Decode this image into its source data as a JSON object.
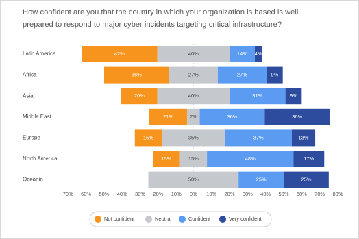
{
  "chart_data": {
    "type": "diverging-bar",
    "title": [
      "How confident are you that the country in which your organization is based is well",
      "prepared to respond to major cyber incidents targeting critical infrastructure?"
    ],
    "categories": [
      "Latin America",
      "Africa",
      "Asia",
      "Middle East",
      "Europe",
      "North America",
      "Oceania"
    ],
    "center_series": 1,
    "series": [
      {
        "name": "Not confident",
        "color": "#f7941d",
        "label_color": "#ffffff",
        "values": [
          42,
          36,
          20,
          21,
          15,
          15,
          null
        ],
        "value_labels": [
          "42%",
          "36%",
          "20%",
          "21%",
          "15%",
          "15%",
          null
        ]
      },
      {
        "name": "Neutral",
        "color": "#c5c9cd",
        "label_color": "#444444",
        "values": [
          40,
          27,
          40,
          7,
          35,
          15,
          50
        ],
        "value_labels": [
          "40%",
          "27%",
          "40%",
          "7%",
          "35%",
          "15%",
          "50%"
        ]
      },
      {
        "name": "Confident",
        "color": "#5b9cf2",
        "label_color": "#ffffff",
        "values": [
          14,
          27,
          31,
          36,
          37,
          48,
          25
        ],
        "value_labels": [
          "14%",
          "27%",
          "31%",
          "36%",
          "37%",
          "48%",
          "25%"
        ]
      },
      {
        "name": "Very confident",
        "color": "#2d4c9e",
        "label_color": "#ffffff",
        "values": [
          4,
          9,
          9,
          36,
          13,
          17,
          25
        ],
        "value_labels": [
          "4%",
          "9%",
          "9%",
          "36%",
          "13%",
          "17%",
          "25%"
        ]
      }
    ],
    "xlim": [
      -70,
      80
    ],
    "xticks": [
      {
        "value": -70,
        "label": "-70%"
      },
      {
        "value": -60,
        "label": "-60%"
      },
      {
        "value": -50,
        "label": "-50%"
      },
      {
        "value": -40,
        "label": "-40%"
      },
      {
        "value": -30,
        "label": "-30%"
      },
      {
        "value": -20,
        "label": "-20%"
      },
      {
        "value": -10,
        "label": "-10%"
      },
      {
        "value": 0,
        "label": "0%"
      },
      {
        "value": 10,
        "label": "10%"
      },
      {
        "value": 20,
        "label": "20%"
      },
      {
        "value": 30,
        "label": "30%"
      },
      {
        "value": 40,
        "label": "40%"
      },
      {
        "value": 50,
        "label": "50%"
      },
      {
        "value": 60,
        "label": "60%"
      },
      {
        "value": 70,
        "label": "70%"
      },
      {
        "value": 80,
        "label": "80%"
      }
    ],
    "grid": false,
    "legend": "bottom"
  }
}
